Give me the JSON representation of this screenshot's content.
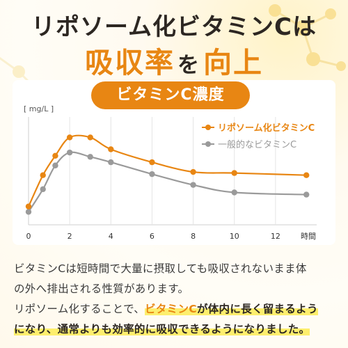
{
  "title_line1": "リポソーム化ビタミンCは",
  "title_line2_a": "吸収率",
  "title_line2_b": "を",
  "title_line2_c": "向上",
  "chart_data": {
    "type": "line",
    "title": "ビタミンC濃度",
    "ylabel": "[ mg/L ]",
    "xlabel": "時間",
    "xlim": [
      0,
      14
    ],
    "ylim": [
      0,
      100
    ],
    "x_ticks": [
      0,
      2,
      4,
      6,
      8,
      10,
      12
    ],
    "x_tick_labels": [
      "0",
      "2",
      "4",
      "6",
      "8",
      "10",
      "12"
    ],
    "grid": true,
    "legend_position": "top-right",
    "colors": {
      "series1": "#e88613",
      "series2": "#9a9a9a"
    },
    "series": [
      {
        "name": "リポソーム化ビタミンC",
        "x": [
          0,
          0.7,
          1.3,
          2,
          3,
          4,
          6,
          8,
          10,
          13.5
        ],
        "y": [
          17,
          46,
          64,
          81,
          81,
          70,
          58,
          49,
          48,
          46
        ],
        "smooth_peak": 2.6
      },
      {
        "name": "一般的なビタミンC",
        "x": [
          0,
          0.7,
          1.3,
          2,
          3,
          4,
          6,
          8,
          10,
          13.5
        ],
        "y": [
          12,
          33,
          55,
          67,
          63,
          58,
          47,
          37,
          30,
          28
        ]
      }
    ]
  },
  "body": {
    "line1": "ビタミンCは短時間で大量に摂取しても吸収されないまま体",
    "line2": "の外へ排出される性質があります。",
    "line3_pre": "リポソーム化することで、",
    "line3_hl_orange": "ビタミンC",
    "line3_hl_dark": "が体内に長く留まるよう",
    "line4_hl": "になり、通常よりも効率的に吸収できるようになりました。"
  }
}
